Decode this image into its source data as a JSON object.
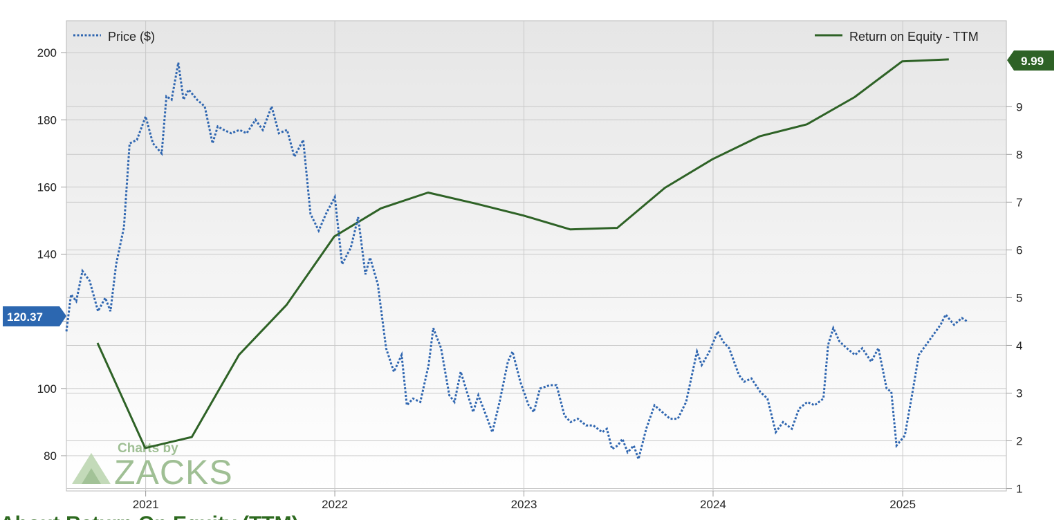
{
  "chart_data": {
    "type": "line",
    "x_ticks": [
      "2021",
      "2022",
      "2023",
      "2024",
      "2025"
    ],
    "y_left_ticks": [
      80,
      100,
      120,
      140,
      160,
      180,
      200
    ],
    "y_right_ticks": [
      1,
      2,
      3,
      4,
      5,
      6,
      7,
      8,
      9
    ],
    "y_left_lim": [
      69.5,
      209.5
    ],
    "y_right_lim": [
      0.95,
      10.8
    ],
    "x_range": [
      "2020-08-01",
      "2025-07-20"
    ],
    "grid": true,
    "legend": {
      "price": "Price ($)",
      "roe": "Return on Equity - TTM"
    },
    "colors": {
      "price": "#2f66b0",
      "roe": "#2e6226",
      "price_badge": "#2c67b0",
      "roe_badge": "#2e6226"
    },
    "series": [
      {
        "name": "Price ($)",
        "axis": "left",
        "style": "dotted",
        "last_value_label": "120.37",
        "points": [
          [
            "2020-08-01",
            117
          ],
          [
            "2020-08-10",
            128
          ],
          [
            "2020-08-20",
            126
          ],
          [
            "2020-09-01",
            135
          ],
          [
            "2020-09-15",
            132
          ],
          [
            "2020-10-01",
            123
          ],
          [
            "2020-10-15",
            127
          ],
          [
            "2020-10-25",
            123
          ],
          [
            "2020-11-05",
            137
          ],
          [
            "2020-11-20",
            148
          ],
          [
            "2020-12-01",
            173
          ],
          [
            "2020-12-15",
            174
          ],
          [
            "2021-01-01",
            181
          ],
          [
            "2021-01-15",
            173
          ],
          [
            "2021-02-01",
            170
          ],
          [
            "2021-02-10",
            187
          ],
          [
            "2021-02-20",
            186
          ],
          [
            "2021-03-05",
            197
          ],
          [
            "2021-03-15",
            186
          ],
          [
            "2021-03-25",
            189
          ],
          [
            "2021-04-10",
            186
          ],
          [
            "2021-04-25",
            184
          ],
          [
            "2021-05-10",
            173
          ],
          [
            "2021-05-20",
            178
          ],
          [
            "2021-06-01",
            177
          ],
          [
            "2021-06-15",
            176
          ],
          [
            "2021-07-01",
            177
          ],
          [
            "2021-07-15",
            176
          ],
          [
            "2021-08-01",
            180
          ],
          [
            "2021-08-15",
            177
          ],
          [
            "2021-09-01",
            184
          ],
          [
            "2021-09-15",
            176
          ],
          [
            "2021-10-01",
            177
          ],
          [
            "2021-10-15",
            169
          ],
          [
            "2021-11-01",
            174
          ],
          [
            "2021-11-15",
            152
          ],
          [
            "2021-12-01",
            147
          ],
          [
            "2021-12-15",
            152
          ],
          [
            "2022-01-01",
            157
          ],
          [
            "2022-01-15",
            137
          ],
          [
            "2022-02-01",
            142
          ],
          [
            "2022-02-15",
            151
          ],
          [
            "2022-03-01",
            134
          ],
          [
            "2022-03-10",
            139
          ],
          [
            "2022-03-25",
            131
          ],
          [
            "2022-04-10",
            112
          ],
          [
            "2022-04-25",
            105
          ],
          [
            "2022-05-10",
            110
          ],
          [
            "2022-05-20",
            95
          ],
          [
            "2022-06-01",
            97
          ],
          [
            "2022-06-15",
            96
          ],
          [
            "2022-07-01",
            107
          ],
          [
            "2022-07-10",
            118
          ],
          [
            "2022-07-25",
            112
          ],
          [
            "2022-08-10",
            98
          ],
          [
            "2022-08-20",
            96
          ],
          [
            "2022-09-01",
            105
          ],
          [
            "2022-09-15",
            98
          ],
          [
            "2022-09-25",
            93
          ],
          [
            "2022-10-05",
            98
          ],
          [
            "2022-10-20",
            92
          ],
          [
            "2022-11-01",
            87
          ],
          [
            "2022-11-15",
            96
          ],
          [
            "2022-12-01",
            108
          ],
          [
            "2022-12-10",
            111
          ],
          [
            "2022-12-25",
            102
          ],
          [
            "2023-01-10",
            95
          ],
          [
            "2023-01-20",
            93
          ],
          [
            "2023-02-01",
            100
          ],
          [
            "2023-02-20",
            101
          ],
          [
            "2023-03-05",
            101
          ],
          [
            "2023-03-20",
            92
          ],
          [
            "2023-04-01",
            90
          ],
          [
            "2023-04-15",
            91
          ],
          [
            "2023-05-01",
            89
          ],
          [
            "2023-05-15",
            89
          ],
          [
            "2023-06-01",
            87
          ],
          [
            "2023-06-10",
            88
          ],
          [
            "2023-06-20",
            82
          ],
          [
            "2023-07-01",
            83
          ],
          [
            "2023-07-10",
            85
          ],
          [
            "2023-07-20",
            81
          ],
          [
            "2023-08-01",
            83
          ],
          [
            "2023-08-10",
            79
          ],
          [
            "2023-08-25",
            88
          ],
          [
            "2023-09-10",
            95
          ],
          [
            "2023-09-25",
            93
          ],
          [
            "2023-10-10",
            91
          ],
          [
            "2023-10-25",
            91
          ],
          [
            "2023-11-10",
            96
          ],
          [
            "2023-12-01",
            111
          ],
          [
            "2023-12-10",
            107
          ],
          [
            "2023-12-25",
            111
          ],
          [
            "2024-01-10",
            117
          ],
          [
            "2024-01-20",
            114
          ],
          [
            "2024-02-01",
            112
          ],
          [
            "2024-02-20",
            104
          ],
          [
            "2024-03-01",
            102
          ],
          [
            "2024-03-15",
            103
          ],
          [
            "2024-04-01",
            99
          ],
          [
            "2024-04-15",
            97
          ],
          [
            "2024-05-01",
            87
          ],
          [
            "2024-05-15",
            90
          ],
          [
            "2024-06-01",
            88
          ],
          [
            "2024-06-15",
            94
          ],
          [
            "2024-07-01",
            96
          ],
          [
            "2024-07-15",
            95
          ],
          [
            "2024-08-01",
            97
          ],
          [
            "2024-08-10",
            113
          ],
          [
            "2024-08-20",
            118
          ],
          [
            "2024-09-01",
            114
          ],
          [
            "2024-09-15",
            112
          ],
          [
            "2024-10-01",
            110
          ],
          [
            "2024-10-15",
            112
          ],
          [
            "2024-11-01",
            108
          ],
          [
            "2024-11-15",
            112
          ],
          [
            "2024-12-01",
            100
          ],
          [
            "2024-12-10",
            99
          ],
          [
            "2024-12-20",
            83
          ],
          [
            "2025-01-05",
            86
          ],
          [
            "2025-01-20",
            99
          ],
          [
            "2025-02-01",
            110
          ],
          [
            "2025-02-15",
            113
          ],
          [
            "2025-03-01",
            116
          ],
          [
            "2025-03-15",
            119
          ],
          [
            "2025-03-25",
            122
          ],
          [
            "2025-04-10",
            119
          ],
          [
            "2025-04-25",
            121
          ],
          [
            "2025-05-05",
            120
          ]
        ]
      },
      {
        "name": "Return on Equity - TTM",
        "axis": "right",
        "style": "solid",
        "last_value_label": "9.99",
        "points": [
          [
            "2020-09-30",
            4.05
          ],
          [
            "2020-12-31",
            1.85
          ],
          [
            "2021-03-31",
            2.08
          ],
          [
            "2021-06-30",
            3.8
          ],
          [
            "2021-09-30",
            4.85
          ],
          [
            "2021-12-31",
            6.28
          ],
          [
            "2022-03-31",
            6.87
          ],
          [
            "2022-06-30",
            7.2
          ],
          [
            "2022-09-30",
            6.97
          ],
          [
            "2022-12-31",
            6.72
          ],
          [
            "2023-03-31",
            6.43
          ],
          [
            "2023-06-30",
            6.46
          ],
          [
            "2023-09-30",
            7.3
          ],
          [
            "2023-12-31",
            7.9
          ],
          [
            "2024-03-31",
            8.38
          ],
          [
            "2024-06-30",
            8.63
          ],
          [
            "2024-09-30",
            9.2
          ],
          [
            "2024-12-31",
            9.95
          ],
          [
            "2025-03-31",
            9.99
          ]
        ]
      }
    ]
  },
  "watermark": {
    "line1": "Charts by",
    "line2": "ZACKS"
  },
  "section_title": "About Return On Equity (TTM)"
}
